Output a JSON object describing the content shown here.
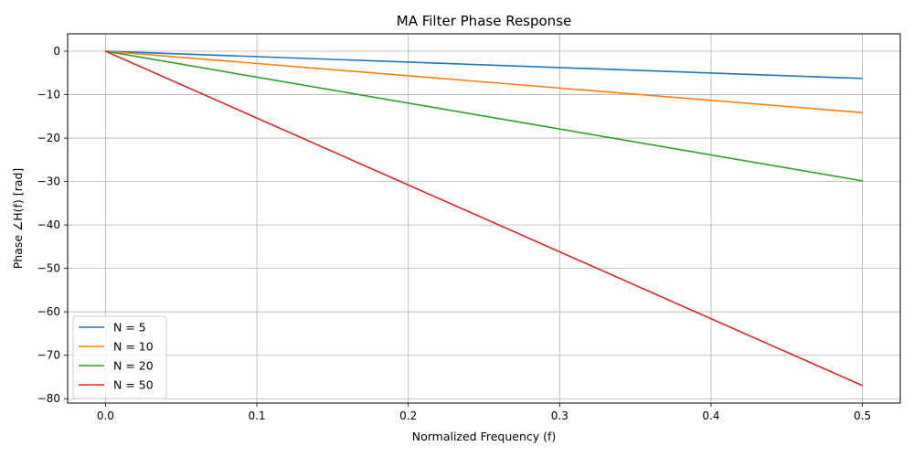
{
  "chart_data": {
    "type": "line",
    "title": "MA Filter Phase Response",
    "xlabel": "Normalized Frequency (f)",
    "ylabel": "Phase ∠H(f) [rad]",
    "xlim": [
      -0.025,
      0.525
    ],
    "ylim": [
      -81,
      4
    ],
    "xticks": [
      0.0,
      0.1,
      0.2,
      0.3,
      0.4,
      0.5
    ],
    "xtick_labels": [
      "0.0",
      "0.1",
      "0.2",
      "0.3",
      "0.4",
      "0.5"
    ],
    "yticks": [
      0,
      -10,
      -20,
      -30,
      -40,
      -50,
      -60,
      -70,
      -80
    ],
    "ytick_labels": [
      "0",
      "−10",
      "−20",
      "−30",
      "−40",
      "−50",
      "−60",
      "−70",
      "−80"
    ],
    "grid": true,
    "legend_position": "lower-left",
    "x": [
      0.0,
      0.5
    ],
    "series": [
      {
        "name": "N = 5",
        "color": "#1f77b4",
        "values": [
          0,
          -6.28
        ]
      },
      {
        "name": "N = 10",
        "color": "#ff7f0e",
        "values": [
          0,
          -14.14
        ]
      },
      {
        "name": "N = 20",
        "color": "#2ca02c",
        "values": [
          0,
          -29.85
        ]
      },
      {
        "name": "N = 50",
        "color": "#d62728",
        "values": [
          0,
          -76.97
        ]
      }
    ]
  }
}
